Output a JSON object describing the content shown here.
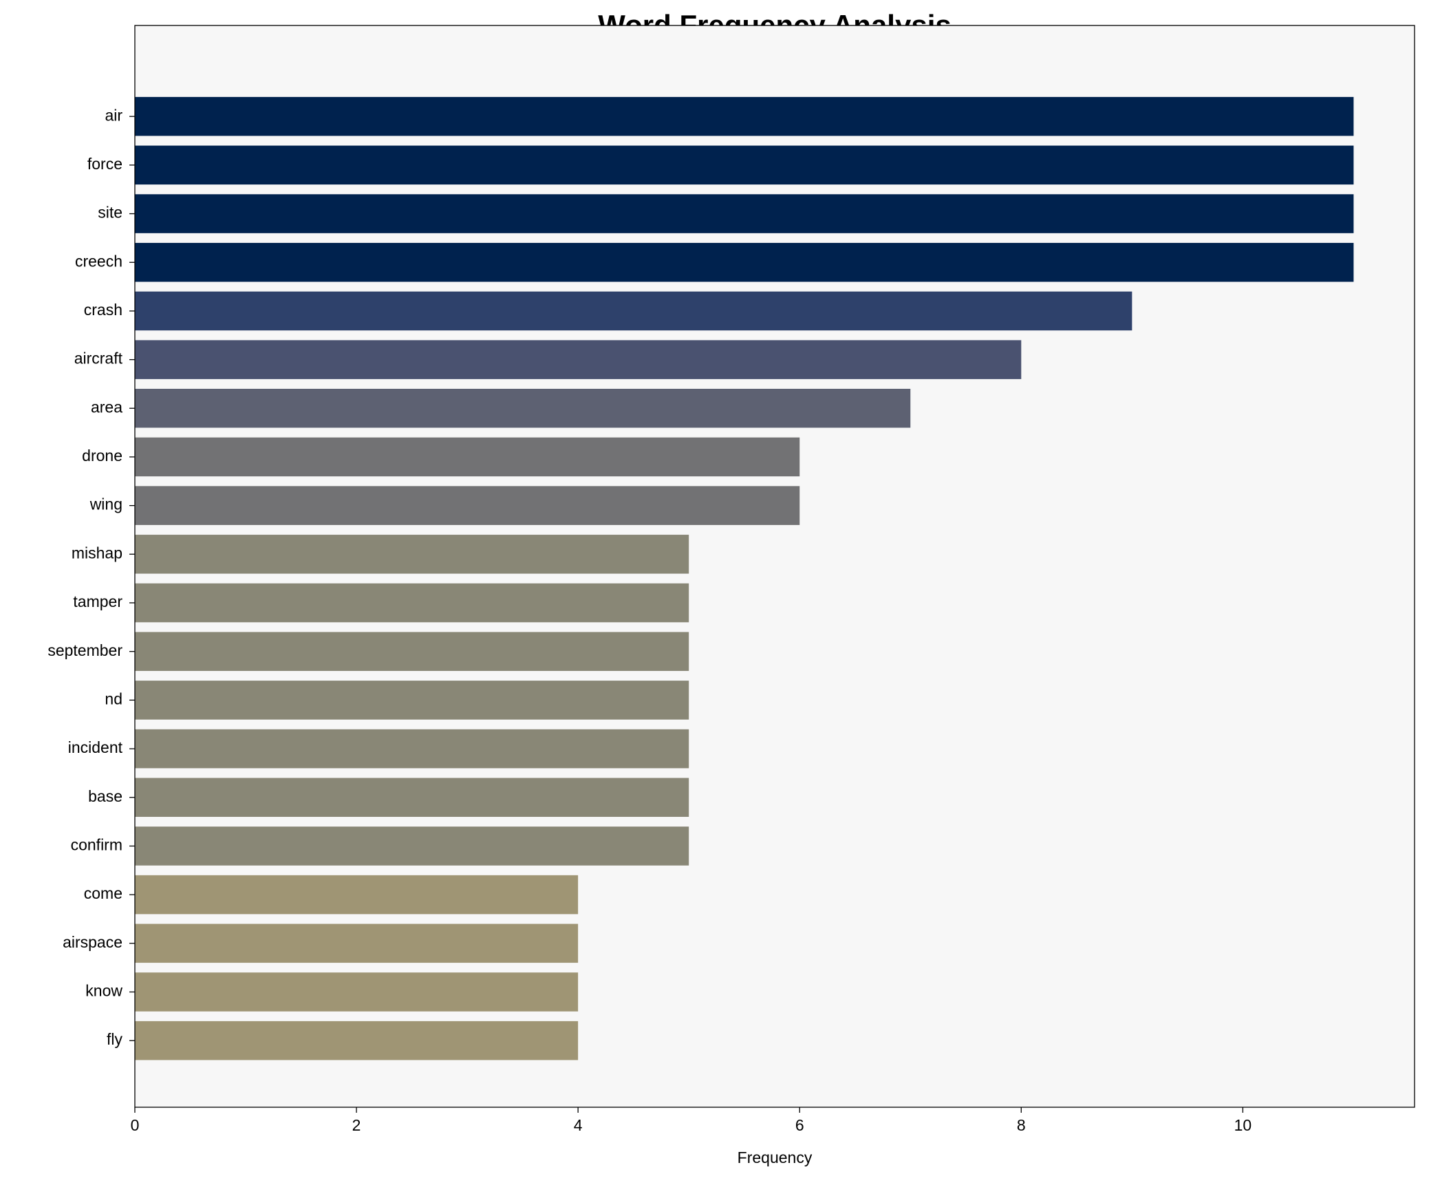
{
  "chart_data": {
    "type": "barh",
    "title": "Word Frequency Analysis",
    "x_label": "Frequency",
    "categories": [
      "air",
      "force",
      "site",
      "creech",
      "crash",
      "aircraft",
      "area",
      "drone",
      "wing",
      "mishap",
      "tamper",
      "september",
      "nd",
      "incident",
      "base",
      "confirm",
      "come",
      "airspace",
      "know",
      "fly"
    ],
    "values": [
      11,
      11,
      11,
      11,
      9,
      8,
      7,
      6,
      6,
      5,
      5,
      5,
      5,
      5,
      5,
      5,
      4,
      4,
      4,
      4
    ],
    "colors": [
      "#00224e",
      "#00224e",
      "#00224e",
      "#00224e",
      "#2e416b",
      "#4a5270",
      "#5d6172",
      "#727274",
      "#727274",
      "#898776",
      "#898776",
      "#898776",
      "#898776",
      "#898776",
      "#898776",
      "#898776",
      "#9f9574",
      "#9f9574",
      "#9f9574",
      "#9f9574"
    ],
    "xlim": [
      0,
      11.55
    ],
    "xticks": [
      0,
      2,
      4,
      6,
      8,
      10
    ],
    "background": "#f7f7f7"
  }
}
